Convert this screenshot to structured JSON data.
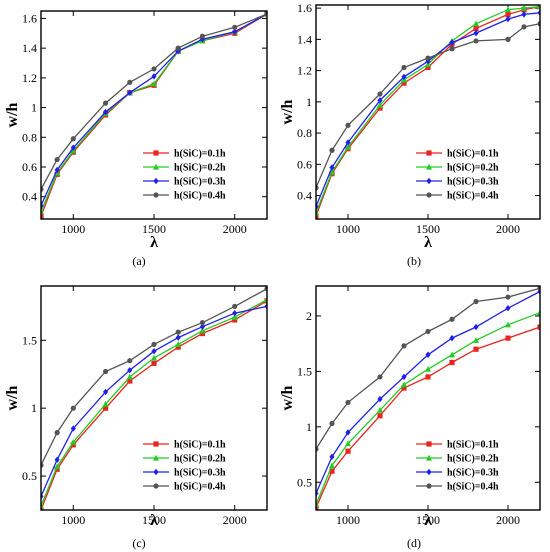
{
  "chart_data": [
    {
      "type": "line",
      "caption": "(a)",
      "xlabel": "λ",
      "ylabel": "w/h",
      "xlim": [
        800,
        2200
      ],
      "ylim": [
        0.25,
        1.65
      ],
      "xticks": [
        1000,
        1500,
        2000
      ],
      "yticks": [
        0.4,
        0.6,
        0.8,
        1.0,
        1.2,
        1.4,
        1.6
      ],
      "ytick_labels": [
        "0.4",
        "0.6",
        "0.8",
        "1",
        "1.2",
        "1.4",
        "1.6"
      ],
      "legend_position": "bottom-right",
      "x": [
        800,
        900,
        1000,
        1200,
        1350,
        1500,
        1650,
        1800,
        2000,
        2200
      ],
      "series": [
        {
          "name": "h(SiC)=0.1h",
          "color": "#e8251f",
          "marker": "square",
          "values": [
            0.27,
            0.55,
            0.7,
            0.95,
            1.1,
            1.15,
            1.38,
            1.45,
            1.5,
            1.63
          ]
        },
        {
          "name": "h(SiC)=0.2h",
          "color": "#22cc22",
          "marker": "triangle",
          "values": [
            0.3,
            0.56,
            0.71,
            0.96,
            1.1,
            1.16,
            1.38,
            1.45,
            1.51,
            1.63
          ]
        },
        {
          "name": "h(SiC)=0.3h",
          "color": "#2020ee",
          "marker": "diamond",
          "values": [
            0.34,
            0.58,
            0.73,
            0.97,
            1.1,
            1.21,
            1.38,
            1.46,
            1.51,
            1.63
          ]
        },
        {
          "name": "h(SiC)=0.4h",
          "color": "#555555",
          "marker": "circle",
          "values": [
            0.45,
            0.65,
            0.79,
            1.03,
            1.17,
            1.26,
            1.4,
            1.48,
            1.54,
            1.63
          ]
        }
      ]
    },
    {
      "type": "line",
      "caption": "(b)",
      "xlabel": "λ",
      "ylabel": "w/h",
      "xlim": [
        800,
        2200
      ],
      "ylim": [
        0.25,
        1.62
      ],
      "xticks": [
        1000,
        1500,
        2000
      ],
      "yticks": [
        0.4,
        0.6,
        0.8,
        1.0,
        1.2,
        1.4,
        1.6
      ],
      "ytick_labels": [
        "0.4",
        "0.6",
        "0.8",
        "1",
        "1.2",
        "1.4",
        "1.6"
      ],
      "legend_position": "bottom-right",
      "x": [
        800,
        900,
        1000,
        1200,
        1350,
        1500,
        1650,
        1800,
        2000,
        2100,
        2200
      ],
      "series": [
        {
          "name": "h(SiC)=0.1h",
          "color": "#e8251f",
          "marker": "square",
          "values": [
            0.27,
            0.54,
            0.7,
            0.96,
            1.12,
            1.22,
            1.37,
            1.47,
            1.56,
            1.59,
            1.61
          ]
        },
        {
          "name": "h(SiC)=0.2h",
          "color": "#22cc22",
          "marker": "triangle",
          "values": [
            0.29,
            0.55,
            0.71,
            0.98,
            1.14,
            1.24,
            1.39,
            1.5,
            1.59,
            1.6,
            1.61
          ]
        },
        {
          "name": "h(SiC)=0.3h",
          "color": "#2020ee",
          "marker": "diamond",
          "values": [
            0.33,
            0.58,
            0.74,
            1.01,
            1.16,
            1.26,
            1.38,
            1.44,
            1.53,
            1.56,
            1.57
          ]
        },
        {
          "name": "h(SiC)=0.4h",
          "color": "#555555",
          "marker": "circle",
          "values": [
            0.45,
            0.69,
            0.85,
            1.05,
            1.22,
            1.28,
            1.34,
            1.39,
            1.4,
            1.48,
            1.5
          ]
        }
      ]
    },
    {
      "type": "line",
      "caption": "(c)",
      "xlabel": "λ",
      "ylabel": "w/h",
      "xlim": [
        800,
        2200
      ],
      "ylim": [
        0.25,
        1.9
      ],
      "xticks": [
        1000,
        1500,
        2000
      ],
      "yticks": [
        0.5,
        1.0,
        1.5
      ],
      "ytick_labels": [
        "0.5",
        "1",
        "1.5"
      ],
      "legend_position": "bottom-right",
      "x": [
        800,
        900,
        1000,
        1200,
        1350,
        1500,
        1650,
        1800,
        2000,
        2200
      ],
      "series": [
        {
          "name": "h(SiC)=0.1h",
          "color": "#e8251f",
          "marker": "square",
          "values": [
            0.25,
            0.55,
            0.73,
            1.0,
            1.2,
            1.33,
            1.45,
            1.55,
            1.65,
            1.79
          ]
        },
        {
          "name": "h(SiC)=0.2h",
          "color": "#22cc22",
          "marker": "triangle",
          "values": [
            0.28,
            0.57,
            0.75,
            1.03,
            1.23,
            1.37,
            1.47,
            1.57,
            1.67,
            1.8
          ]
        },
        {
          "name": "h(SiC)=0.3h",
          "color": "#2020ee",
          "marker": "diamond",
          "values": [
            0.35,
            0.62,
            0.85,
            1.12,
            1.28,
            1.42,
            1.52,
            1.6,
            1.7,
            1.75
          ]
        },
        {
          "name": "h(SiC)=0.4h",
          "color": "#555555",
          "marker": "circle",
          "values": [
            0.58,
            0.82,
            1.0,
            1.27,
            1.35,
            1.47,
            1.56,
            1.63,
            1.75,
            1.88
          ]
        }
      ]
    },
    {
      "type": "line",
      "caption": "(d)",
      "xlabel": "λ",
      "ylabel": "w/h",
      "xlim": [
        800,
        2200
      ],
      "ylim": [
        0.25,
        2.27
      ],
      "xticks": [
        1000,
        1500,
        2000
      ],
      "yticks": [
        0.5,
        1.0,
        1.5,
        2.0
      ],
      "ytick_labels": [
        "0.5",
        "1",
        "1.5",
        "2"
      ],
      "legend_position": "bottom-right",
      "x": [
        800,
        900,
        1000,
        1200,
        1350,
        1500,
        1650,
        1800,
        2000,
        2200
      ],
      "series": [
        {
          "name": "h(SiC)=0.1h",
          "color": "#e8251f",
          "marker": "square",
          "values": [
            0.27,
            0.6,
            0.78,
            1.1,
            1.35,
            1.45,
            1.58,
            1.7,
            1.8,
            1.9
          ]
        },
        {
          "name": "h(SiC)=0.2h",
          "color": "#22cc22",
          "marker": "triangle",
          "values": [
            0.3,
            0.65,
            0.85,
            1.15,
            1.38,
            1.52,
            1.65,
            1.78,
            1.92,
            2.03
          ]
        },
        {
          "name": "h(SiC)=0.3h",
          "color": "#2020ee",
          "marker": "diamond",
          "values": [
            0.4,
            0.73,
            0.95,
            1.25,
            1.45,
            1.65,
            1.8,
            1.9,
            2.07,
            2.22
          ]
        },
        {
          "name": "h(SiC)=0.4h",
          "color": "#555555",
          "marker": "circle",
          "values": [
            0.8,
            1.03,
            1.22,
            1.45,
            1.73,
            1.86,
            1.97,
            2.13,
            2.17,
            2.25
          ]
        }
      ]
    }
  ]
}
